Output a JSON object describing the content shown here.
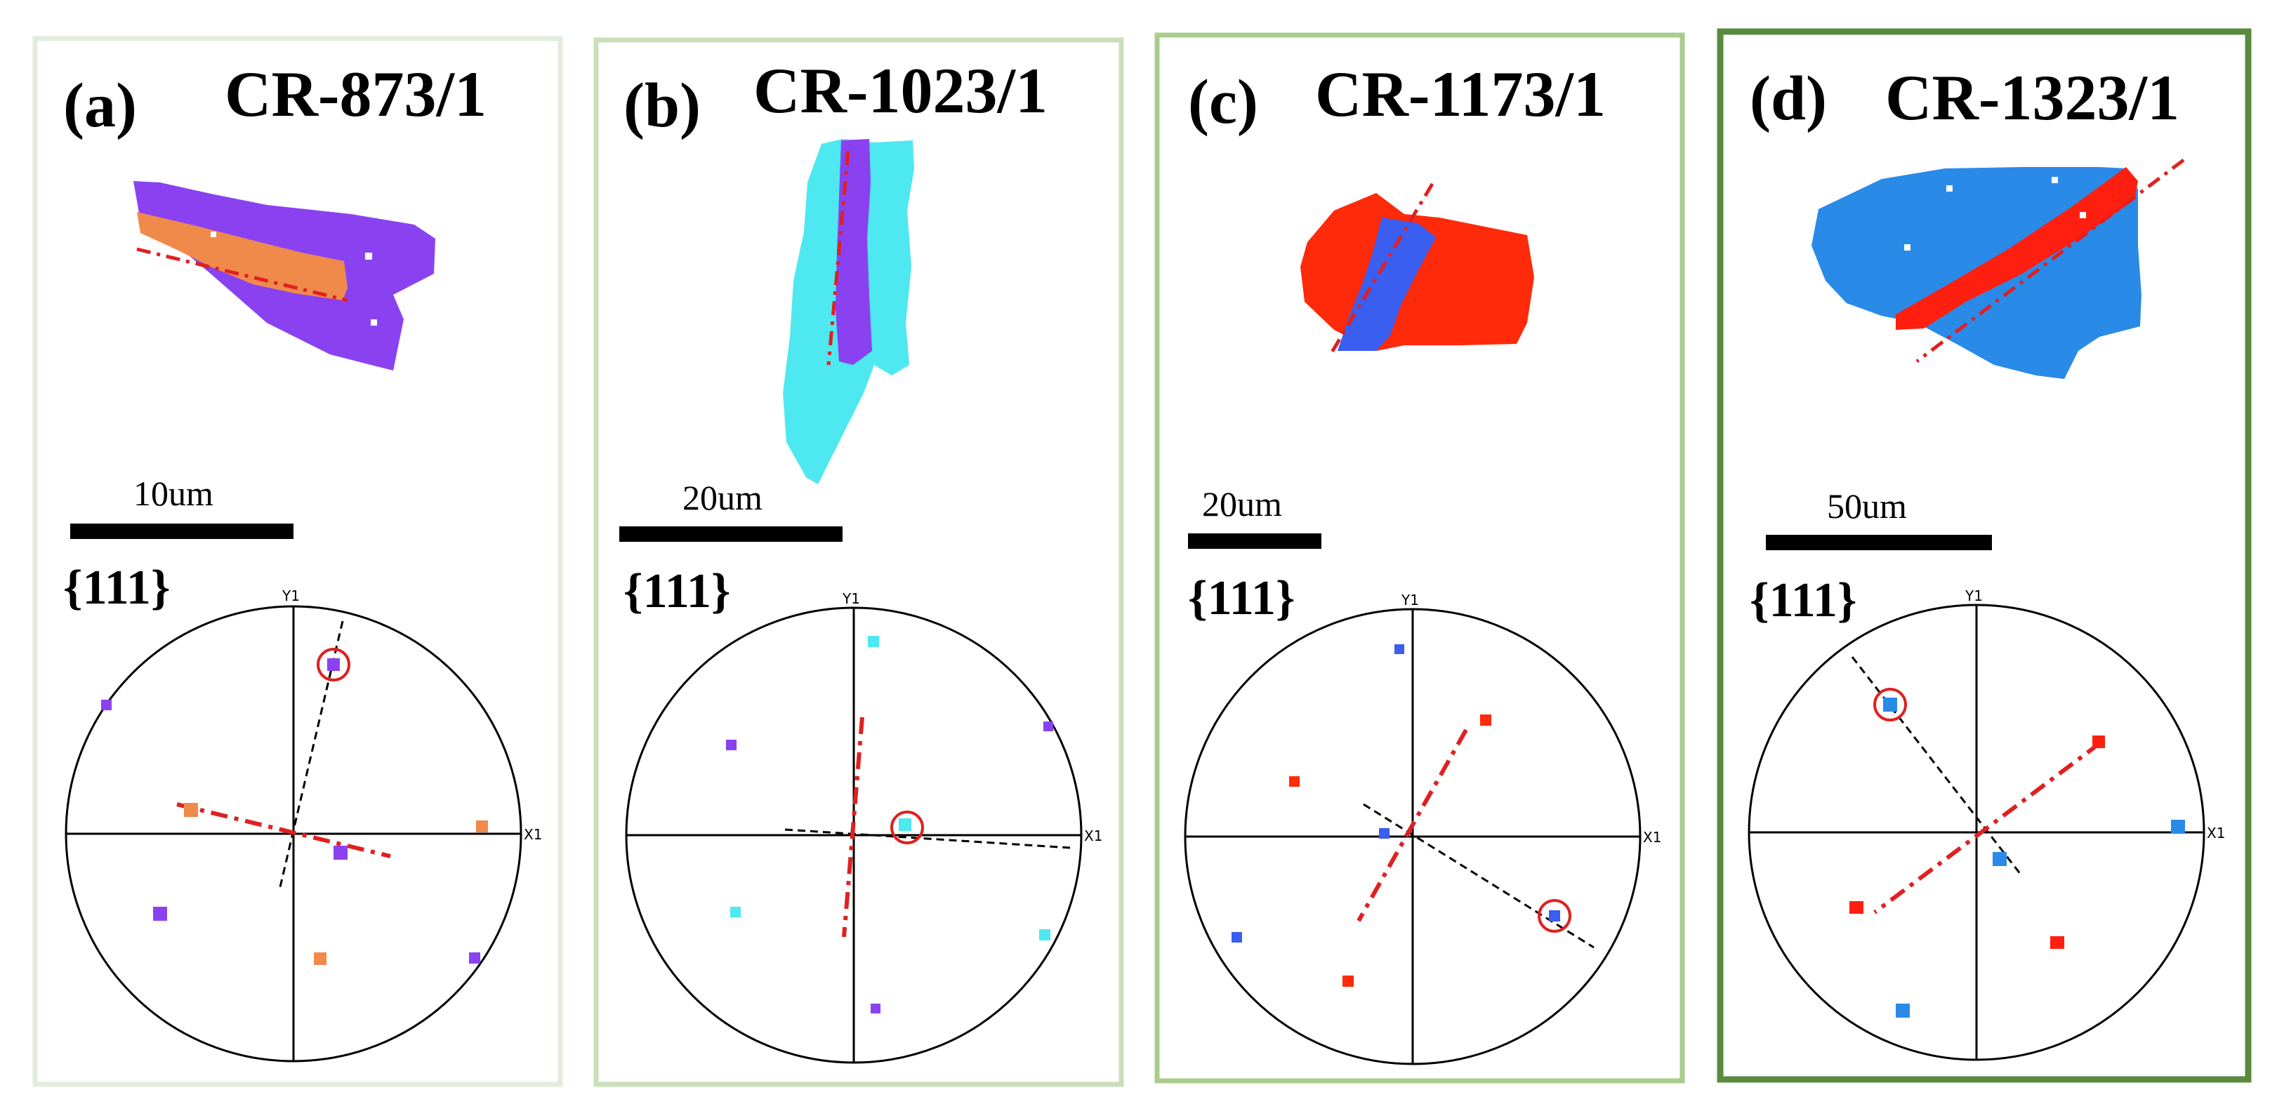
{
  "panels": [
    {
      "label": "(a)",
      "title": "CR-873/1",
      "scale_bar": "10um",
      "pole_figure": "{111}",
      "axis_y": "Y1",
      "axis_x": "X1",
      "border_color": "#e3eddb",
      "colors": {
        "matrix": "#8a42f0",
        "twin": "#f08a4b"
      }
    },
    {
      "label": "(b)",
      "title": "CR-1023/1",
      "scale_bar": "20um",
      "pole_figure": "{111}",
      "axis_y": "Y1",
      "axis_x": "X1",
      "border_color": "#c8dfb8",
      "colors": {
        "matrix": "#4de8f0",
        "twin": "#8a42f0"
      }
    },
    {
      "label": "(c)",
      "title": "CR-1173/1",
      "scale_bar": "20um",
      "pole_figure": "{111}",
      "axis_y": "Y1",
      "axis_x": "X1",
      "border_color": "#a9cc8c",
      "colors": {
        "matrix": "#ff2a0a",
        "twin": "#3a5ef0"
      }
    },
    {
      "label": "(d)",
      "title": "CR-1323/1",
      "scale_bar": "50um",
      "pole_figure": "{111}",
      "axis_y": "Y1",
      "axis_x": "X1",
      "border_color": "#5a8a3c",
      "colors": {
        "matrix": "#2a8ae8",
        "twin": "#ff1f10"
      }
    }
  ]
}
